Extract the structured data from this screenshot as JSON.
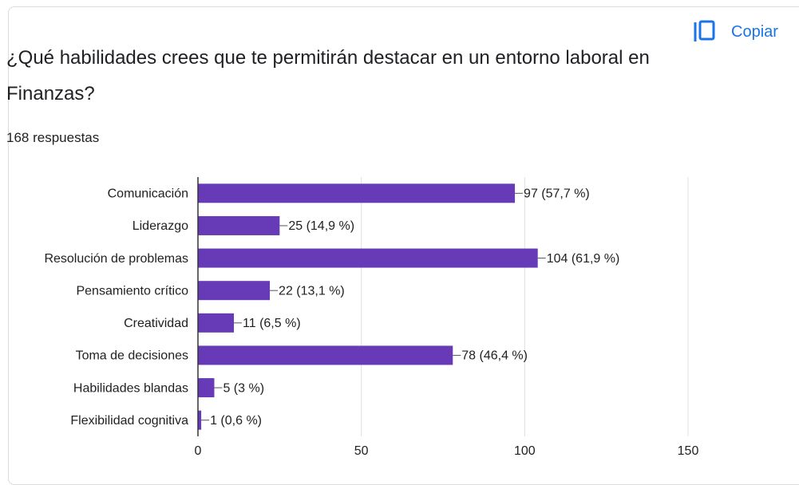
{
  "copy_button": {
    "label": "Copiar"
  },
  "chart_data": {
    "type": "bar",
    "orientation": "horizontal",
    "title": "¿Qué habilidades crees que te permitirán destacar en un entorno laboral en Finanzas?",
    "subtitle": "168 respuestas",
    "categories": [
      "Comunicación",
      "Liderazgo",
      "Resolución de problemas",
      "Pensamiento crítico",
      "Creatividad",
      "Toma de decisiones",
      "Habilidades blandas",
      "Flexibilidad cognitiva"
    ],
    "values": [
      97,
      25,
      104,
      22,
      11,
      78,
      5,
      1
    ],
    "value_labels": [
      "97 (57,7 %)",
      "25 (14,9 %)",
      "104 (61,9 %)",
      "22 (13,1 %)",
      "11 (6,5 %)",
      "78 (46,4 %)",
      "5 (3 %)",
      "1 (0,6 %)"
    ],
    "color": "#673ab7",
    "xlim": [
      0,
      150
    ],
    "xticks": [
      0,
      50,
      100,
      150
    ],
    "grid": true
  }
}
